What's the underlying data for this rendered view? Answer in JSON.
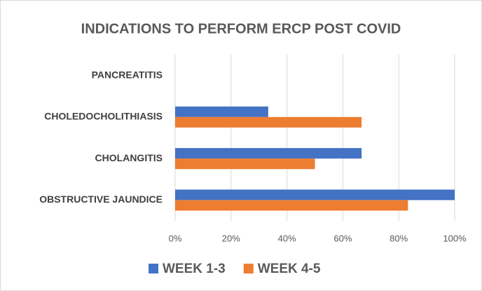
{
  "chart_data": {
    "type": "bar",
    "orientation": "horizontal",
    "title": "INDICATIONS TO PERFORM ERCP POST COVID",
    "categories": [
      "PANCREATITIS",
      "CHOLEDOCHOLITHIASIS",
      "CHOLANGITIS",
      "OBSTRUCTIVE JAUNDICE"
    ],
    "series": [
      {
        "name": "WEEK 1-3",
        "color": "#4472c4",
        "values": [
          0,
          33.3,
          66.7,
          100
        ]
      },
      {
        "name": "WEEK 4-5",
        "color": "#ed7d31",
        "values": [
          0,
          66.7,
          50,
          83.3
        ]
      }
    ],
    "xlim": [
      0,
      100
    ],
    "xticks": [
      {
        "value": 0,
        "label": "0%"
      },
      {
        "value": 20,
        "label": "20%"
      },
      {
        "value": 40,
        "label": "40%"
      },
      {
        "value": 60,
        "label": "60%"
      },
      {
        "value": 80,
        "label": "80%"
      },
      {
        "value": 100,
        "label": "100%"
      }
    ],
    "grid": true,
    "legend": "bottom"
  }
}
